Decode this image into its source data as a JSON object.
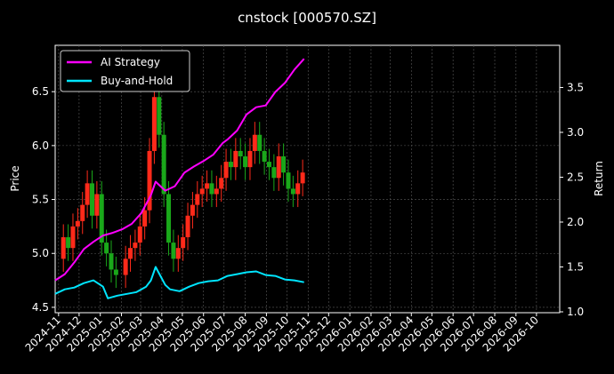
{
  "chart_data": {
    "type": "line",
    "title": "cnstock [000570.SZ]",
    "ylabel_left": "Price",
    "ylabel_right": "Return",
    "xlabel": "",
    "grid": true,
    "legend_position": "top-left",
    "x_axis": {
      "type": "date",
      "range": [
        "2024-10-27",
        "2026-11-04"
      ],
      "tick_labels": [
        "2024-11",
        "2024-12",
        "2025-01",
        "2025-02",
        "2025-03",
        "2025-04",
        "2025-05",
        "2025-06",
        "2025-07",
        "2025-08",
        "2025-09",
        "2025-10",
        "2025-11",
        "2025-12",
        "2026-01",
        "2026-02",
        "2026-03",
        "2026-04",
        "2026-05",
        "2026-06",
        "2026-07",
        "2026-08",
        "2026-09",
        "2026-10"
      ]
    },
    "y_left": {
      "range": [
        4.45,
        6.93
      ],
      "tick_labels": [
        "4.5",
        "5.0",
        "5.5",
        "6.0",
        "6.5"
      ]
    },
    "y_right": {
      "range": [
        0.99,
        3.97
      ],
      "tick_labels": [
        "1.0",
        "1.5",
        "2.0",
        "2.5",
        "3.0",
        "3.5"
      ]
    },
    "price_series": {
      "name": "Price",
      "up_color": "#ff2a1a",
      "down_color": "#1aa81a",
      "points": [
        [
          "2024-11-01",
          4.95
        ],
        [
          "2024-11-08",
          5.15
        ],
        [
          "2024-11-15",
          5.05
        ],
        [
          "2024-11-22",
          5.25
        ],
        [
          "2024-11-29",
          5.3
        ],
        [
          "2024-12-06",
          5.45
        ],
        [
          "2024-12-13",
          5.65
        ],
        [
          "2024-12-20",
          5.35
        ],
        [
          "2024-12-27",
          5.55
        ],
        [
          "2025-01-03",
          5.1
        ],
        [
          "2025-01-10",
          5.0
        ],
        [
          "2025-01-17",
          4.85
        ],
        [
          "2025-01-24",
          4.8
        ],
        [
          "2025-02-07",
          4.95
        ],
        [
          "2025-02-14",
          5.05
        ],
        [
          "2025-02-21",
          5.1
        ],
        [
          "2025-02-28",
          5.25
        ],
        [
          "2025-03-07",
          5.4
        ],
        [
          "2025-03-14",
          5.95
        ],
        [
          "2025-03-21",
          6.45
        ],
        [
          "2025-03-28",
          6.1
        ],
        [
          "2025-04-04",
          5.55
        ],
        [
          "2025-04-11",
          5.1
        ],
        [
          "2025-04-18",
          4.95
        ],
        [
          "2025-04-25",
          5.05
        ],
        [
          "2025-05-02",
          5.15
        ],
        [
          "2025-05-09",
          5.35
        ],
        [
          "2025-05-16",
          5.45
        ],
        [
          "2025-05-23",
          5.55
        ],
        [
          "2025-05-30",
          5.6
        ],
        [
          "2025-06-06",
          5.65
        ],
        [
          "2025-06-13",
          5.55
        ],
        [
          "2025-06-20",
          5.6
        ],
        [
          "2025-06-27",
          5.7
        ],
        [
          "2025-07-04",
          5.85
        ],
        [
          "2025-07-11",
          5.8
        ],
        [
          "2025-07-18",
          5.95
        ],
        [
          "2025-07-25",
          5.9
        ],
        [
          "2025-08-01",
          5.8
        ],
        [
          "2025-08-08",
          5.95
        ],
        [
          "2025-08-15",
          6.1
        ],
        [
          "2025-08-22",
          5.95
        ],
        [
          "2025-08-29",
          5.85
        ],
        [
          "2025-09-05",
          5.8
        ],
        [
          "2025-09-12",
          5.7
        ],
        [
          "2025-09-19",
          5.9
        ],
        [
          "2025-09-26",
          5.75
        ],
        [
          "2025-10-03",
          5.6
        ],
        [
          "2025-10-10",
          5.55
        ],
        [
          "2025-10-17",
          5.65
        ],
        [
          "2025-10-24",
          5.75
        ]
      ]
    },
    "series": [
      {
        "name": "AI Strategy",
        "color": "#ff00ff",
        "axis": "right",
        "points": [
          [
            "2024-10-27",
            1.35
          ],
          [
            "2024-11-10",
            1.42
          ],
          [
            "2024-11-24",
            1.55
          ],
          [
            "2024-12-08",
            1.7
          ],
          [
            "2024-12-22",
            1.78
          ],
          [
            "2025-01-05",
            1.85
          ],
          [
            "2025-01-19",
            1.88
          ],
          [
            "2025-02-02",
            1.92
          ],
          [
            "2025-02-16",
            1.98
          ],
          [
            "2025-03-02",
            2.1
          ],
          [
            "2025-03-16",
            2.3
          ],
          [
            "2025-03-23",
            2.45
          ],
          [
            "2025-03-30",
            2.4
          ],
          [
            "2025-04-06",
            2.35
          ],
          [
            "2025-04-20",
            2.4
          ],
          [
            "2025-05-04",
            2.55
          ],
          [
            "2025-05-18",
            2.62
          ],
          [
            "2025-06-01",
            2.68
          ],
          [
            "2025-06-15",
            2.75
          ],
          [
            "2025-06-29",
            2.88
          ],
          [
            "2025-07-06",
            2.92
          ],
          [
            "2025-07-20",
            3.02
          ],
          [
            "2025-08-03",
            3.2
          ],
          [
            "2025-08-17",
            3.28
          ],
          [
            "2025-08-31",
            3.3
          ],
          [
            "2025-09-14",
            3.45
          ],
          [
            "2025-09-28",
            3.55
          ],
          [
            "2025-10-12",
            3.7
          ],
          [
            "2025-10-26",
            3.82
          ]
        ]
      },
      {
        "name": "Buy-and-Hold",
        "color": "#00e5ff",
        "axis": "right",
        "points": [
          [
            "2024-10-27",
            1.2
          ],
          [
            "2024-11-10",
            1.25
          ],
          [
            "2024-11-24",
            1.27
          ],
          [
            "2024-12-08",
            1.32
          ],
          [
            "2024-12-22",
            1.35
          ],
          [
            "2025-01-05",
            1.28
          ],
          [
            "2025-01-12",
            1.15
          ],
          [
            "2025-01-26",
            1.18
          ],
          [
            "2025-02-09",
            1.2
          ],
          [
            "2025-02-23",
            1.22
          ],
          [
            "2025-03-09",
            1.28
          ],
          [
            "2025-03-16",
            1.35
          ],
          [
            "2025-03-23",
            1.5
          ],
          [
            "2025-03-30",
            1.4
          ],
          [
            "2025-04-06",
            1.3
          ],
          [
            "2025-04-13",
            1.25
          ],
          [
            "2025-04-27",
            1.23
          ],
          [
            "2025-05-11",
            1.28
          ],
          [
            "2025-05-25",
            1.32
          ],
          [
            "2025-06-08",
            1.34
          ],
          [
            "2025-06-22",
            1.35
          ],
          [
            "2025-07-06",
            1.4
          ],
          [
            "2025-07-20",
            1.42
          ],
          [
            "2025-08-03",
            1.44
          ],
          [
            "2025-08-17",
            1.45
          ],
          [
            "2025-08-31",
            1.41
          ],
          [
            "2025-09-14",
            1.4
          ],
          [
            "2025-09-28",
            1.36
          ],
          [
            "2025-10-12",
            1.35
          ],
          [
            "2025-10-26",
            1.33
          ]
        ]
      }
    ]
  }
}
